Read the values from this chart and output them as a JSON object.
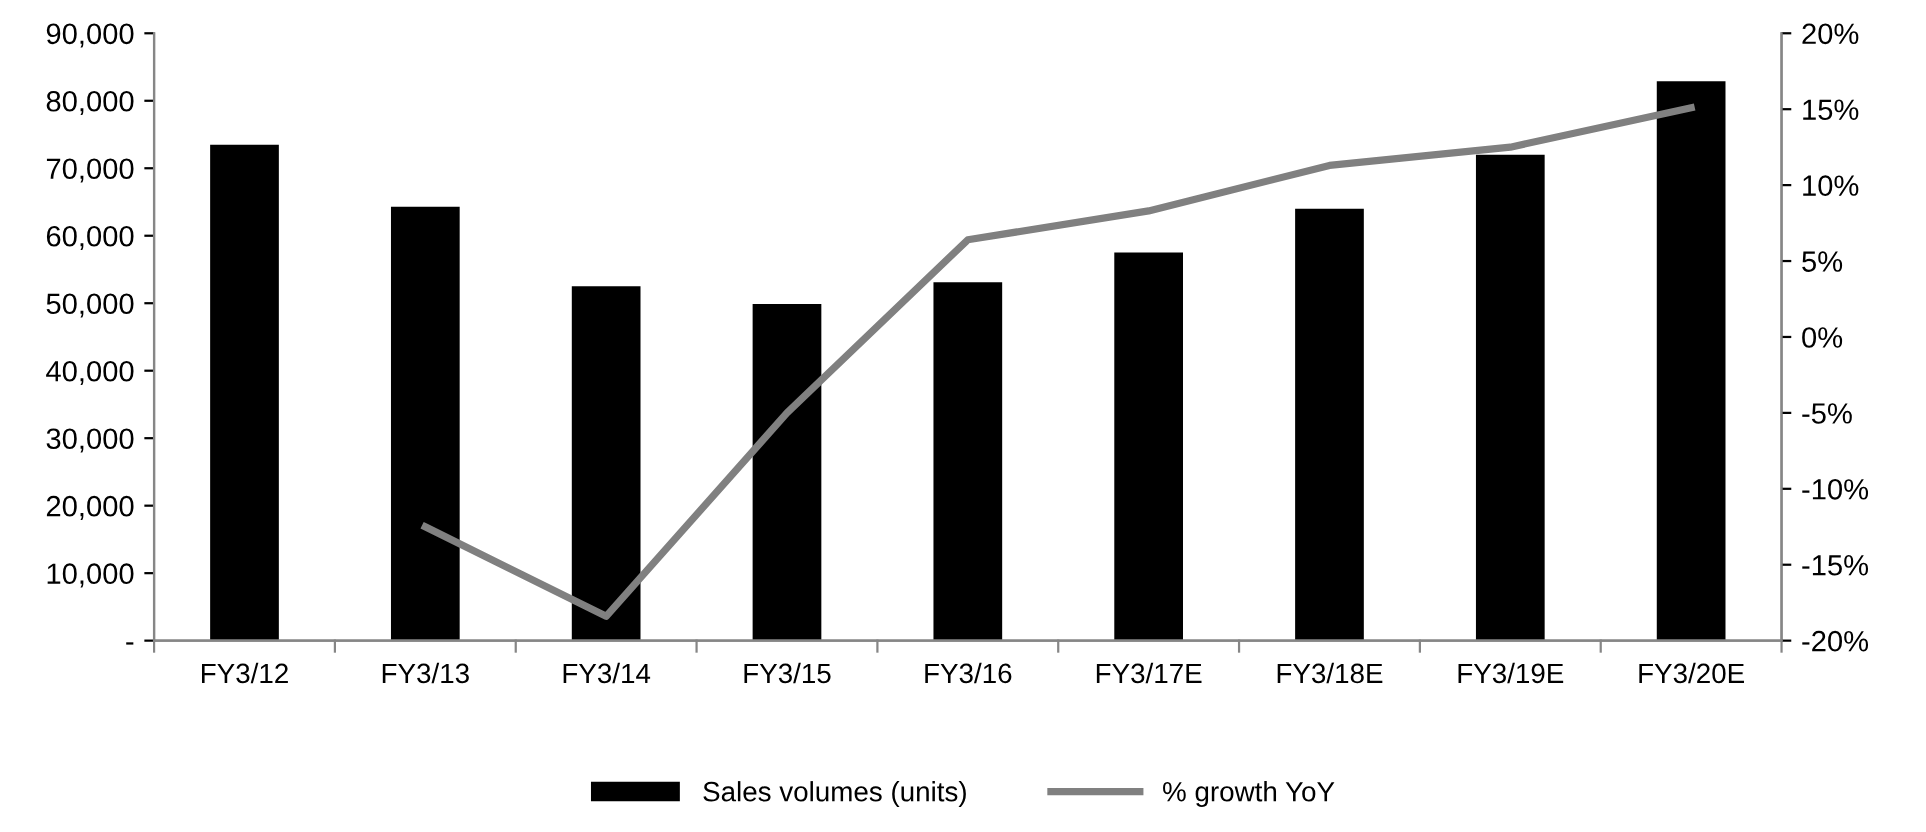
{
  "chart_data": {
    "type": "bar",
    "categories": [
      "FY3/12",
      "FY3/13",
      "FY3/14",
      "FY3/15",
      "FY3/16",
      "FY3/17E",
      "FY3/18E",
      "FY3/19E",
      "FY3/20E"
    ],
    "series": [
      {
        "name": "Sales volumes (units)",
        "color": "#000000",
        "values": [
          73500,
          64300,
          52500,
          49900,
          53100,
          57500,
          64000,
          72000,
          82900
        ]
      },
      {
        "name": "% growth YoY",
        "type": "line",
        "axis": "y2",
        "color": "#808080",
        "values": [
          null,
          -12.5,
          -18.4,
          -5.0,
          6.4,
          8.3,
          11.3,
          12.5,
          15.1
        ]
      }
    ],
    "ylim": [
      0,
      90000
    ],
    "yticks": [
      {
        "value": 0,
        "label": "-"
      },
      {
        "value": 10000,
        "label": "10,000"
      },
      {
        "value": 20000,
        "label": "20,000"
      },
      {
        "value": 30000,
        "label": "30,000"
      },
      {
        "value": 40000,
        "label": "40,000"
      },
      {
        "value": 50000,
        "label": "50,000"
      },
      {
        "value": 60000,
        "label": "60,000"
      },
      {
        "value": 70000,
        "label": "70,000"
      },
      {
        "value": 80000,
        "label": "80,000"
      },
      {
        "value": 90000,
        "label": "90,000"
      }
    ],
    "y2lim": [
      -20,
      20
    ],
    "y2ticks": [
      {
        "value": -20,
        "label": "-20%"
      },
      {
        "value": -15,
        "label": "-15%"
      },
      {
        "value": -10,
        "label": "-10%"
      },
      {
        "value": -5,
        "label": "-5%"
      },
      {
        "value": 0,
        "label": "0%"
      },
      {
        "value": 5,
        "label": "5%"
      },
      {
        "value": 10,
        "label": "10%"
      },
      {
        "value": 15,
        "label": "15%"
      },
      {
        "value": 20,
        "label": "20%"
      }
    ],
    "legend": "bottom",
    "grid": false,
    "marker": "none",
    "line_style": "solid"
  }
}
